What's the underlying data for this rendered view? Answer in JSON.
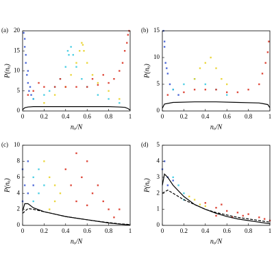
{
  "chart_data": [
    {
      "type": "scatter",
      "panel": "(a)",
      "xlabel": "nₒ/N",
      "ylabel": "P(nₒ)",
      "xlim": [
        0,
        1
      ],
      "xticks": [
        0,
        0.2,
        0.4,
        0.6,
        0.8,
        1
      ],
      "ylim": [
        0,
        20
      ],
      "yticks": [
        0,
        5,
        10,
        15,
        20
      ],
      "series": [
        {
          "type": "points",
          "color": "#3050d0",
          "x": [
            0.01,
            0.02,
            0.03,
            0.04,
            0.05,
            0.06,
            0.08,
            0.1,
            0.02,
            0.03,
            0.05,
            0.07
          ],
          "values": [
            19.5,
            16,
            12,
            9,
            7,
            5,
            4,
            3,
            18,
            14,
            10,
            6
          ]
        },
        {
          "type": "points",
          "color": "#30c8e0",
          "x": [
            0.1,
            0.2,
            0.3,
            0.35,
            0.4,
            0.43,
            0.45,
            0.47,
            0.5,
            0.55,
            0.6,
            0.7,
            0.8,
            0.9,
            0.25,
            0.42
          ],
          "values": [
            3,
            4,
            6,
            8,
            11,
            14,
            16,
            14,
            11,
            8,
            6,
            4,
            3,
            2,
            5,
            15
          ]
        },
        {
          "type": "points",
          "color": "#e8d020",
          "x": [
            0.3,
            0.4,
            0.45,
            0.5,
            0.53,
            0.55,
            0.57,
            0.6,
            0.65,
            0.7,
            0.8,
            0.9,
            0.2,
            0.56
          ],
          "values": [
            4,
            6,
            9,
            12,
            15,
            17,
            15,
            12,
            9,
            7,
            5,
            3,
            2,
            16.5
          ]
        },
        {
          "type": "points",
          "color": "#d82818",
          "x": [
            0.05,
            0.1,
            0.2,
            0.3,
            0.4,
            0.5,
            0.6,
            0.7,
            0.8,
            0.85,
            0.9,
            0.93,
            0.95,
            0.97,
            0.98,
            0.99,
            0.15,
            0.35,
            0.65,
            0.75
          ],
          "values": [
            4,
            5,
            6,
            6,
            6,
            6,
            6,
            6.5,
            7,
            8,
            10,
            12,
            15,
            17,
            19,
            20,
            7,
            8,
            8,
            9
          ]
        },
        {
          "type": "line",
          "style": "solid",
          "color": "#000000",
          "x": [
            0,
            0.02,
            0.05,
            0.1,
            0.2,
            0.3,
            0.4,
            0.5,
            0.6,
            0.7,
            0.8,
            0.9,
            0.95,
            0.98,
            1
          ],
          "values": [
            0.3,
            0.8,
            1,
            1.1,
            1.1,
            1.1,
            1.1,
            1.1,
            1.1,
            1.1,
            1.1,
            1,
            0.9,
            0.6,
            0.2
          ]
        }
      ]
    },
    {
      "type": "scatter",
      "panel": "(b)",
      "xlabel": "nₒ/N",
      "ylabel": "P(nₒ)",
      "xlim": [
        0,
        1
      ],
      "xticks": [
        0,
        0.2,
        0.4,
        0.6,
        0.8,
        1
      ],
      "ylim": [
        0,
        15
      ],
      "yticks": [
        0,
        5,
        10,
        15
      ],
      "series": [
        {
          "type": "points",
          "color": "#3050d0",
          "x": [
            0.01,
            0.02,
            0.03,
            0.05,
            0.07,
            0.1,
            0.15,
            0.02,
            0.04
          ],
          "values": [
            15,
            12,
            9,
            7,
            5,
            4,
            3,
            13,
            8
          ]
        },
        {
          "type": "points",
          "color": "#30c8e0",
          "x": [
            0.1,
            0.2,
            0.3,
            0.4,
            0.5,
            0.6
          ],
          "values": [
            4,
            5,
            6,
            5,
            4,
            3
          ]
        },
        {
          "type": "points",
          "color": "#e8d020",
          "x": [
            0.3,
            0.35,
            0.4,
            0.45,
            0.5,
            0.55,
            0.6
          ],
          "values": [
            6,
            8,
            9,
            10,
            8,
            6,
            5
          ]
        },
        {
          "type": "points",
          "color": "#d82818",
          "x": [
            0.05,
            0.2,
            0.3,
            0.4,
            0.5,
            0.6,
            0.7,
            0.8,
            0.9,
            0.93,
            0.96,
            0.98,
            0.99
          ],
          "values": [
            3,
            3.5,
            4,
            4,
            4,
            3.5,
            3.5,
            4,
            5,
            7,
            9,
            11,
            13
          ]
        },
        {
          "type": "line",
          "style": "solid",
          "color": "#000000",
          "x": [
            0,
            0.02,
            0.1,
            0.3,
            0.5,
            0.7,
            0.9,
            0.98,
            1
          ],
          "values": [
            0.5,
            1.3,
            1.6,
            1.7,
            1.7,
            1.6,
            1.5,
            1.2,
            0.6
          ]
        }
      ]
    },
    {
      "type": "scatter",
      "panel": "(c)",
      "xlabel": "nₒ/N",
      "ylabel": "P(nₒ)",
      "xlim": [
        0,
        1
      ],
      "xticks": [
        0,
        0.2,
        0.4,
        0.6,
        0.8,
        1
      ],
      "ylim": [
        0,
        10
      ],
      "yticks": [
        0,
        2,
        4,
        6,
        8,
        10
      ],
      "series": [
        {
          "type": "points",
          "color": "#3050d0",
          "x": [
            0,
            0.02,
            0.05,
            0.05,
            0.1,
            0
          ],
          "values": [
            7,
            5,
            8,
            4,
            5,
            3
          ]
        },
        {
          "type": "points",
          "color": "#30c8e0",
          "x": [
            0.1,
            0.15,
            0.15,
            0.2,
            0.1
          ],
          "values": [
            6,
            7,
            4,
            5,
            3
          ]
        },
        {
          "type": "points",
          "color": "#e8d020",
          "x": [
            0.2,
            0.25,
            0.3,
            0.3,
            0.35,
            0.25
          ],
          "values": [
            8,
            6,
            5,
            3,
            4,
            2
          ]
        },
        {
          "type": "points",
          "color": "#d82818",
          "x": [
            0.4,
            0.45,
            0.5,
            0.55,
            0.6,
            0.65,
            0.7,
            0.75,
            0.8,
            0.9,
            0.5,
            0.6,
            0.85
          ],
          "values": [
            7,
            5,
            9,
            6,
            8,
            4,
            5,
            3,
            2,
            2,
            3,
            2.5,
            1
          ]
        },
        {
          "type": "line",
          "style": "solid",
          "color": "#000000",
          "x": [
            0,
            0.02,
            0.05,
            0.1,
            0.2,
            0.3,
            0.4,
            0.5,
            0.6,
            0.7,
            0.8,
            0.9,
            1
          ],
          "values": [
            1.8,
            2.7,
            2.7,
            2.2,
            1.7,
            1.4,
            1.1,
            0.9,
            0.7,
            0.5,
            0.3,
            0.15,
            0.05
          ]
        },
        {
          "type": "line",
          "style": "dashed",
          "color": "#000000",
          "x": [
            0,
            0.05,
            0.1,
            0.2,
            0.3,
            0.4,
            0.5,
            0.6,
            0.7,
            0.8,
            0.9,
            1
          ],
          "values": [
            1.5,
            2.1,
            2,
            1.7,
            1.4,
            1.1,
            0.9,
            0.7,
            0.5,
            0.35,
            0.2,
            0.1
          ]
        }
      ]
    },
    {
      "type": "scatter",
      "panel": "(d)",
      "xlabel": "nₒ/N",
      "ylabel": "P(nₒ)",
      "xlim": [
        0,
        1
      ],
      "xticks": [
        0,
        0.2,
        0.4,
        0.6,
        0.8,
        1
      ],
      "ylim": [
        0,
        5
      ],
      "yticks": [
        0,
        1,
        2,
        3,
        4,
        5
      ],
      "series": [
        {
          "type": "points",
          "color": "#3050d0",
          "x": [
            0,
            0.02,
            0.05,
            0.05,
            0.1
          ],
          "values": [
            3.5,
            4,
            3,
            2.5,
            2.8
          ]
        },
        {
          "type": "points",
          "color": "#30c8e0",
          "x": [
            0.1,
            0.15,
            0.2,
            0.2
          ],
          "values": [
            3,
            2.5,
            2,
            1.6
          ]
        },
        {
          "type": "points",
          "color": "#e8d020",
          "x": [
            0.25,
            0.3,
            0.35,
            0.4
          ],
          "values": [
            1.8,
            1.6,
            1.3,
            1.2
          ]
        },
        {
          "type": "points",
          "color": "#d82818",
          "x": [
            0.4,
            0.5,
            0.55,
            0.6,
            0.7,
            0.75,
            0.8,
            0.9,
            0.95,
            1,
            0.5,
            0.65
          ],
          "values": [
            1.4,
            1.1,
            1.3,
            0.9,
            0.8,
            0.6,
            0.7,
            0.5,
            0.4,
            0.3,
            0.6,
            0.5
          ]
        },
        {
          "type": "line",
          "style": "solid",
          "color": "#000000",
          "x": [
            0,
            0.02,
            0.05,
            0.1,
            0.2,
            0.3,
            0.4,
            0.5,
            0.6,
            0.7,
            0.8,
            0.9,
            1
          ],
          "values": [
            2.5,
            3.2,
            3,
            2.5,
            1.8,
            1.3,
            1,
            0.75,
            0.55,
            0.4,
            0.3,
            0.2,
            0.1
          ]
        },
        {
          "type": "line",
          "style": "dashed",
          "color": "#000000",
          "x": [
            0,
            0.05,
            0.1,
            0.2,
            0.3,
            0.4,
            0.5,
            0.6,
            0.7,
            0.8,
            0.9,
            1
          ],
          "values": [
            2,
            2.2,
            2,
            1.6,
            1.3,
            1,
            0.8,
            0.65,
            0.5,
            0.4,
            0.3,
            0.2
          ]
        }
      ]
    }
  ]
}
